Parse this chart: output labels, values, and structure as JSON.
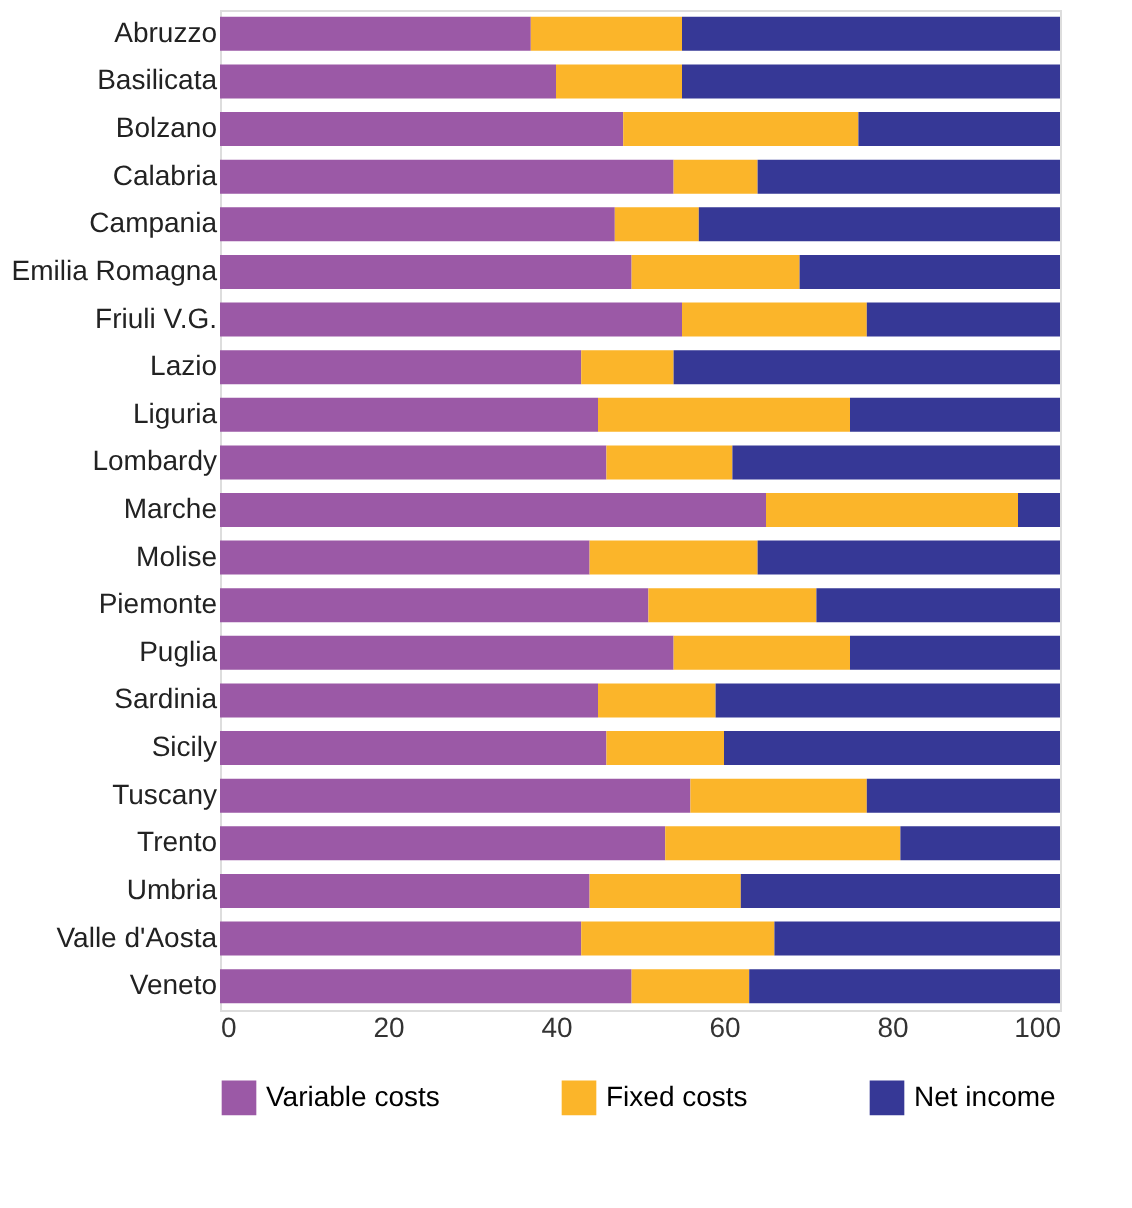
{
  "chart_data": {
    "type": "bar",
    "orientation": "horizontal",
    "stacked": true,
    "categories": [
      "Abruzzo",
      "Basilicata",
      "Bolzano",
      "Calabria",
      "Campania",
      "Emilia Romagna",
      "Friuli V.G.",
      "Lazio",
      "Liguria",
      "Lombardy",
      "Marche",
      "Molise",
      "Piemonte",
      "Puglia",
      "Sardinia",
      "Sicily",
      "Tuscany",
      "Trento",
      "Umbria",
      "Valle d'Aosta",
      "Veneto"
    ],
    "series": [
      {
        "name": "Variable costs",
        "color": "#9b59a6",
        "values": [
          37,
          40,
          48,
          54,
          47,
          49,
          55,
          43,
          45,
          46,
          65,
          44,
          51,
          54,
          45,
          46,
          56,
          53,
          44,
          43,
          49
        ]
      },
      {
        "name": "Fixed costs",
        "color": "#fbb52a",
        "values": [
          18,
          15,
          28,
          10,
          10,
          20,
          22,
          11,
          30,
          15,
          30,
          20,
          20,
          21,
          14,
          14,
          21,
          28,
          18,
          23,
          14
        ]
      },
      {
        "name": "Net income",
        "color": "#363896",
        "values": [
          45,
          45,
          24,
          36,
          43,
          31,
          23,
          46,
          25,
          39,
          5,
          36,
          29,
          25,
          41,
          40,
          23,
          19,
          38,
          34,
          37
        ]
      }
    ],
    "xlim": [
      0,
      100
    ],
    "xticks": [
      0,
      20,
      40,
      60,
      80,
      100
    ],
    "grid": false,
    "legend": "bottom"
  }
}
